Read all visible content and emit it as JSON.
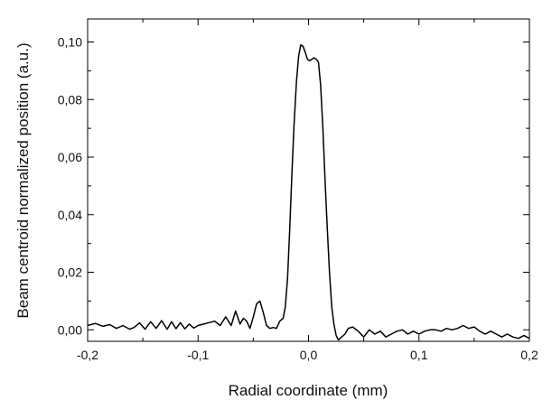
{
  "chart_data": {
    "type": "line",
    "title": "",
    "xlabel": "Radial coordinate (mm)",
    "ylabel": "Beam centroid normalized position (a.u.)",
    "xlim": [
      -0.2,
      0.2
    ],
    "ylim": [
      -0.004,
      0.108
    ],
    "grid": false,
    "x_ticks": [
      -0.2,
      -0.1,
      0.0,
      0.1,
      0.2
    ],
    "x_tick_labels": [
      "-0,2",
      "-0,1",
      "0,0",
      "0,1",
      "0,2"
    ],
    "x_minor_ticks": [
      -0.15,
      -0.05,
      0.05,
      0.15
    ],
    "y_ticks": [
      0.0,
      0.02,
      0.04,
      0.06,
      0.08,
      0.1
    ],
    "y_tick_labels": [
      "0,00",
      "0,02",
      "0,04",
      "0,06",
      "0,08",
      "0,10"
    ],
    "y_minor_ticks": [
      0.01,
      0.03,
      0.05,
      0.07,
      0.09
    ],
    "series": [
      {
        "color": "#000000",
        "x": [
          -0.2,
          -0.193,
          -0.186,
          -0.18,
          -0.174,
          -0.168,
          -0.162,
          -0.158,
          -0.153,
          -0.148,
          -0.143,
          -0.138,
          -0.133,
          -0.128,
          -0.124,
          -0.12,
          -0.116,
          -0.112,
          -0.108,
          -0.104,
          -0.1,
          -0.095,
          -0.09,
          -0.085,
          -0.08,
          -0.075,
          -0.07,
          -0.066,
          -0.062,
          -0.059,
          -0.056,
          -0.053,
          -0.05,
          -0.047,
          -0.044,
          -0.041,
          -0.038,
          -0.035,
          -0.032,
          -0.029,
          -0.026,
          -0.023,
          -0.021,
          -0.019,
          -0.017,
          -0.015,
          -0.013,
          -0.011,
          -0.009,
          -0.007,
          -0.005,
          -0.003,
          -0.001,
          0.001,
          0.003,
          0.005,
          0.007,
          0.009,
          0.011,
          0.013,
          0.015,
          0.017,
          0.019,
          0.021,
          0.023,
          0.025,
          0.027,
          0.03,
          0.033,
          0.036,
          0.04,
          0.045,
          0.05,
          0.055,
          0.06,
          0.065,
          0.07,
          0.075,
          0.08,
          0.085,
          0.09,
          0.095,
          0.1,
          0.105,
          0.11,
          0.115,
          0.12,
          0.125,
          0.13,
          0.135,
          0.14,
          0.145,
          0.15,
          0.155,
          0.16,
          0.165,
          0.17,
          0.175,
          0.18,
          0.185,
          0.19,
          0.195,
          0.2
        ],
        "y": [
          0.0015,
          0.0022,
          0.0012,
          0.0018,
          0.0005,
          0.0015,
          0.0002,
          0.0008,
          0.0024,
          0.0002,
          0.0028,
          0.0005,
          0.0032,
          0.0002,
          0.0028,
          0.0004,
          0.0025,
          0.0003,
          0.002,
          0.0006,
          0.0015,
          0.002,
          0.0025,
          0.003,
          0.0015,
          0.0045,
          0.0015,
          0.0065,
          0.002,
          0.004,
          0.003,
          0.0005,
          0.0045,
          0.009,
          0.01,
          0.006,
          0.0015,
          0.0005,
          0.0008,
          0.0005,
          0.003,
          0.004,
          0.008,
          0.018,
          0.035,
          0.055,
          0.072,
          0.086,
          0.095,
          0.099,
          0.0985,
          0.0965,
          0.094,
          0.0935,
          0.094,
          0.0945,
          0.094,
          0.093,
          0.085,
          0.07,
          0.052,
          0.035,
          0.02,
          0.008,
          0.002,
          -0.002,
          -0.0035,
          -0.0025,
          -0.0015,
          0.0005,
          0.001,
          -0.0005,
          -0.0025,
          0.0,
          -0.0015,
          -0.0005,
          -0.0025,
          -0.0015,
          -0.0005,
          0.0,
          -0.0015,
          -0.0005,
          -0.0015,
          -0.0005,
          0.0,
          0.0,
          -0.0005,
          0.0005,
          0.0,
          0.0005,
          0.0015,
          0.0005,
          0.001,
          -0.0005,
          -0.0015,
          -0.0005,
          -0.0015,
          -0.0025,
          -0.0015,
          -0.0025,
          -0.003,
          -0.002,
          -0.003
        ]
      }
    ]
  }
}
